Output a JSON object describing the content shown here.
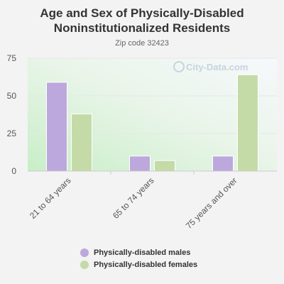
{
  "chart_data": {
    "type": "bar",
    "title_lines": [
      "Age and Sex of Physically-Disabled",
      "Noninstitutionalized Residents"
    ],
    "subtitle": "Zip code 32423",
    "watermark": "City-Data.com",
    "categories": [
      "21 to 64 years",
      "65 to 74 years",
      "75 years and over"
    ],
    "series": [
      {
        "name": "Physically-disabled males",
        "values": [
          59,
          10,
          10
        ],
        "color": "#bca8dd"
      },
      {
        "name": "Physically-disabled females",
        "values": [
          38,
          7,
          64
        ],
        "color": "#c4dba8"
      }
    ],
    "yticks": [
      0,
      25,
      50,
      75
    ],
    "ylim": [
      0,
      75
    ],
    "grid": true,
    "legend_position": "bottom"
  }
}
